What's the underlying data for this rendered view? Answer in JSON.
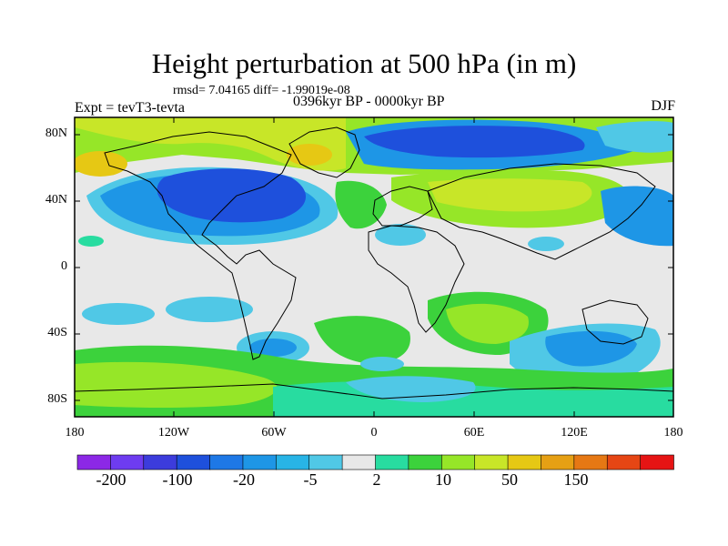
{
  "title": "Height perturbation at 500 hPa (in m)",
  "stats": "rmsd= 7.04165 diff= -1.99019e-08",
  "experiment": "Expt = tevT3-tevta",
  "period": "0396kyr BP - 0000kyr BP",
  "season": "DJF",
  "lat_labels": [
    "80N",
    "40N",
    "0",
    "40S",
    "80S"
  ],
  "lon_labels": [
    "180",
    "120W",
    "60W",
    "0",
    "60E",
    "120E",
    "180"
  ],
  "colorbar": {
    "labels": [
      "-200",
      "-100",
      "-20",
      "-5",
      "2",
      "10",
      "50",
      "150"
    ],
    "colors": [
      "#8c28e6",
      "#6e3cf0",
      "#3c3cdc",
      "#1e50dc",
      "#1e78e6",
      "#1e96e6",
      "#28b4e6",
      "#50c8e6",
      "#e8e8e8",
      "#28dca0",
      "#3cd23c",
      "#96e628",
      "#c8e628",
      "#e6c814",
      "#e6a014",
      "#e67814",
      "#e64614",
      "#e61414"
    ]
  },
  "fill_colors": {
    "background": "#e8e8e8",
    "deep_blue": "#1e50dc",
    "mid_blue": "#1e96e6",
    "light_blue": "#50c8e6",
    "teal": "#28dca0",
    "green": "#3cd23c",
    "yellow_green": "#96e628",
    "yellow": "#c8e628",
    "orange": "#e6c814",
    "land": "#000000"
  }
}
